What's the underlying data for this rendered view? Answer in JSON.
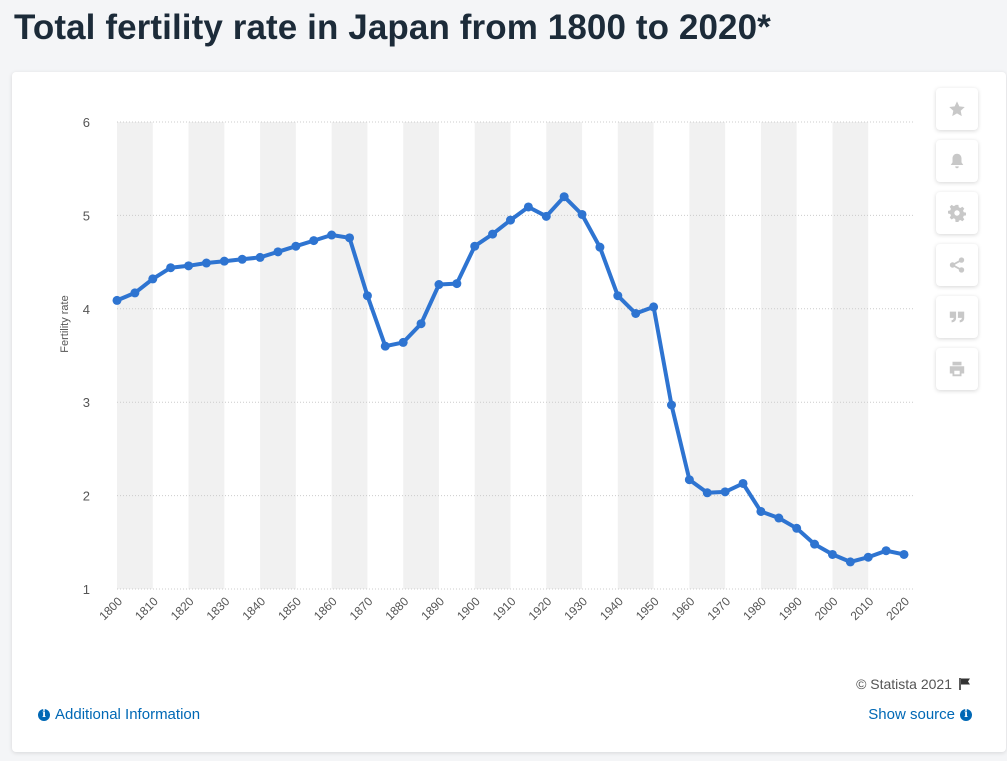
{
  "page": {
    "title": "Total fertility rate in Japan from 1800 to 2020*"
  },
  "footer": {
    "copyright": "© Statista 2021",
    "additional_info": "Additional Information",
    "show_source": "Show source"
  },
  "toolbar": {
    "icons": [
      "star-icon",
      "bell-icon",
      "gear-icon",
      "share-icon",
      "quote-icon",
      "print-icon"
    ]
  },
  "colors": {
    "line": "#2e74d1",
    "band": "#f1f1f1",
    "grid": "#cccccc",
    "axis_text": "#555555",
    "link": "#0068b5"
  },
  "chart_data": {
    "type": "line",
    "title": "Total fertility rate in Japan from 1800 to 2020*",
    "xlabel": "",
    "ylabel": "Fertility rate",
    "ylim": [
      1,
      6
    ],
    "yticks": [
      1,
      2,
      3,
      4,
      5,
      6
    ],
    "xticks": [
      1800,
      1810,
      1820,
      1830,
      1840,
      1850,
      1860,
      1870,
      1880,
      1890,
      1900,
      1910,
      1920,
      1930,
      1940,
      1950,
      1960,
      1970,
      1980,
      1990,
      2000,
      2010,
      2020
    ],
    "grid": true,
    "legend": "none",
    "series": [
      {
        "x": [
          1800,
          1805,
          1810,
          1815,
          1820,
          1825,
          1830,
          1835,
          1840,
          1845,
          1850,
          1855,
          1860,
          1865,
          1870,
          1875,
          1880,
          1885,
          1890,
          1895,
          1900,
          1905,
          1910,
          1915,
          1920,
          1925,
          1930,
          1935,
          1940,
          1945,
          1950,
          1955,
          1960,
          1965,
          1970,
          1975,
          1980,
          1985,
          1990,
          1995,
          2000,
          2005,
          2010,
          2015,
          2020
        ],
        "values": [
          4.09,
          4.17,
          4.32,
          4.44,
          4.46,
          4.49,
          4.51,
          4.53,
          4.55,
          4.61,
          4.67,
          4.73,
          4.79,
          4.76,
          4.14,
          3.6,
          3.64,
          3.84,
          4.26,
          4.27,
          4.67,
          4.8,
          4.95,
          5.09,
          4.99,
          5.2,
          5.01,
          4.66,
          4.14,
          3.95,
          4.02,
          2.97,
          2.17,
          2.03,
          2.04,
          2.13,
          1.83,
          1.76,
          1.65,
          1.48,
          1.37,
          1.29,
          1.34,
          1.41,
          1.37
        ]
      }
    ]
  }
}
